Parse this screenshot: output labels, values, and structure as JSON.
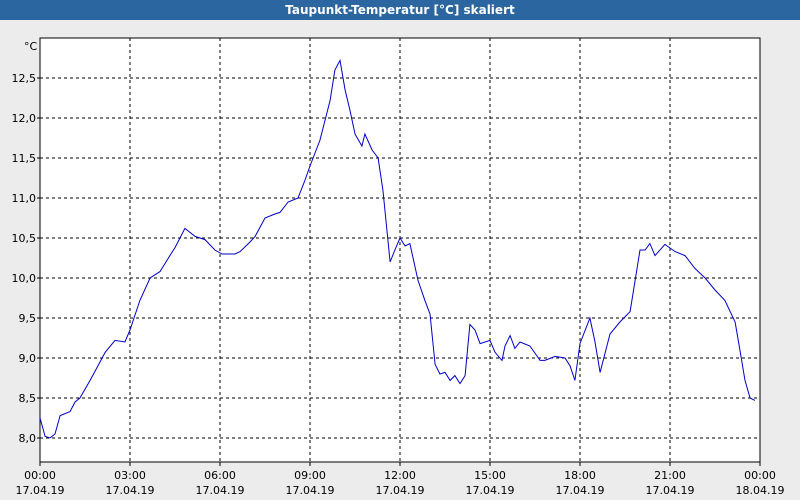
{
  "chart_data": {
    "type": "line",
    "title": "Taupunkt-Temperatur [°C] skaliert",
    "ylabel": "°C",
    "xlim": [
      0,
      24
    ],
    "ylim": [
      7.7,
      13.0
    ],
    "grid": true,
    "yticks": [
      {
        "value": 8.0,
        "label": "8,0"
      },
      {
        "value": 8.5,
        "label": "8,5"
      },
      {
        "value": 9.0,
        "label": "9,0"
      },
      {
        "value": 9.5,
        "label": "9,5"
      },
      {
        "value": 10.0,
        "label": "10,0"
      },
      {
        "value": 10.5,
        "label": "10,5"
      },
      {
        "value": 11.0,
        "label": "11,0"
      },
      {
        "value": 11.5,
        "label": "11,5"
      },
      {
        "value": 12.0,
        "label": "12,0"
      },
      {
        "value": 12.5,
        "label": "12,5"
      }
    ],
    "xticks": [
      {
        "value": 0,
        "label": "00:00",
        "date": "17.04.19"
      },
      {
        "value": 3,
        "label": "03:00",
        "date": "17.04.19"
      },
      {
        "value": 6,
        "label": "06:00",
        "date": "17.04.19"
      },
      {
        "value": 9,
        "label": "09:00",
        "date": "17.04.19"
      },
      {
        "value": 12,
        "label": "12:00",
        "date": "17.04.19"
      },
      {
        "value": 15,
        "label": "15:00",
        "date": "17.04.19"
      },
      {
        "value": 18,
        "label": "18:00",
        "date": "17.04.19"
      },
      {
        "value": 21,
        "label": "21:00",
        "date": "17.04.19"
      },
      {
        "value": 24,
        "label": "00:00",
        "date": "18.04.19"
      }
    ],
    "x": [
      0,
      0.17,
      0.33,
      0.5,
      0.67,
      1,
      1.17,
      1.33,
      1.67,
      2,
      2.17,
      2.5,
      2.83,
      3,
      3.33,
      3.67,
      4,
      4.33,
      4.5,
      4.83,
      5.17,
      5.5,
      5.83,
      6.07,
      6.5,
      6.67,
      7,
      7.17,
      7.5,
      7.83,
      8,
      8.27,
      8.6,
      8.83,
      9,
      9.33,
      9.67,
      9.83,
      10,
      10.17,
      10.33,
      10.5,
      10.73,
      10.83,
      11.07,
      11.27,
      11.43,
      11.67,
      11.83,
      12,
      12.17,
      12.33,
      12.6,
      12.83,
      13,
      13.17,
      13.33,
      13.5,
      13.67,
      13.83,
      14,
      14.17,
      14.33,
      14.5,
      14.67,
      15,
      15.17,
      15.4,
      15.5,
      15.67,
      15.83,
      16,
      16.33,
      16.67,
      16.83,
      17.17,
      17.5,
      17.67,
      17.83,
      18,
      18.33,
      18.5,
      18.67,
      19,
      19.33,
      19.67,
      20,
      20.17,
      20.33,
      20.5,
      20.83,
      21.17,
      21.5,
      21.83,
      22.17,
      22.5,
      22.83,
      23.17,
      23.33,
      23.5,
      23.67,
      23.83
    ],
    "series": [
      {
        "name": "Taupunkt",
        "color": "#0000c8",
        "values": [
          8.25,
          8.02,
          8.0,
          8.05,
          8.28,
          8.33,
          8.45,
          8.5,
          8.72,
          8.95,
          9.07,
          9.22,
          9.2,
          9.35,
          9.72,
          10.0,
          10.08,
          10.28,
          10.38,
          10.62,
          10.52,
          10.48,
          10.35,
          10.3,
          10.3,
          10.33,
          10.45,
          10.52,
          10.75,
          10.8,
          10.82,
          10.95,
          11.0,
          11.22,
          11.4,
          11.72,
          12.22,
          12.6,
          12.72,
          12.35,
          12.1,
          11.8,
          11.65,
          11.8,
          11.6,
          11.5,
          11.1,
          10.2,
          10.35,
          10.5,
          10.4,
          10.43,
          9.97,
          9.72,
          9.55,
          8.92,
          8.8,
          8.82,
          8.72,
          8.78,
          8.68,
          8.78,
          9.42,
          9.35,
          9.18,
          9.22,
          9.07,
          8.97,
          9.15,
          9.28,
          9.12,
          9.2,
          9.15,
          8.97,
          8.97,
          9.02,
          9.0,
          8.9,
          8.72,
          9.18,
          9.5,
          9.2,
          8.82,
          9.3,
          9.45,
          9.58,
          10.35,
          10.35,
          10.43,
          10.28,
          10.42,
          10.33,
          10.28,
          10.12,
          10.0,
          9.85,
          9.72,
          9.45,
          9.1,
          8.72,
          8.5,
          8.47
        ]
      }
    ]
  }
}
